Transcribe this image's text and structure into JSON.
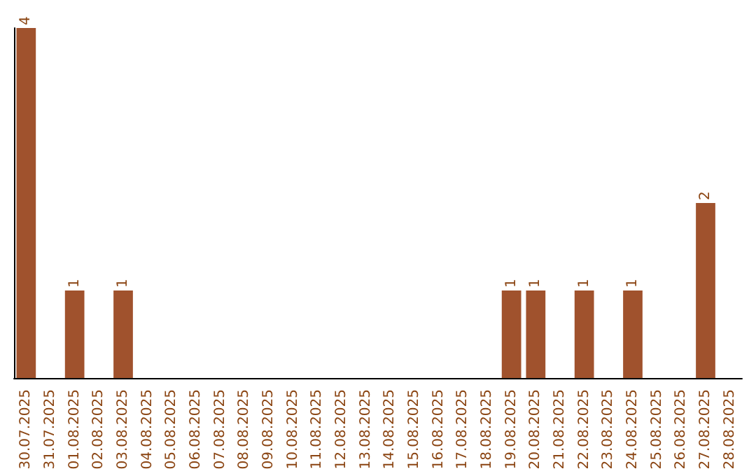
{
  "chart_data": {
    "type": "bar",
    "categories": [
      "30.07.2025",
      "31.07.2025",
      "01.08.2025",
      "02.08.2025",
      "03.08.2025",
      "04.08.2025",
      "05.08.2025",
      "06.08.2025",
      "07.08.2025",
      "08.08.2025",
      "09.08.2025",
      "10.08.2025",
      "11.08.2025",
      "12.08.2025",
      "13.08.2025",
      "14.08.2025",
      "15.08.2025",
      "16.08.2025",
      "17.08.2025",
      "18.08.2025",
      "19.08.2025",
      "20.08.2025",
      "21.08.2025",
      "22.08.2025",
      "23.08.2025",
      "24.08.2025",
      "25.08.2025",
      "26.08.2025",
      "27.08.2025",
      "28.08.2025"
    ],
    "values": [
      4,
      0,
      1,
      0,
      1,
      0,
      0,
      0,
      0,
      0,
      0,
      0,
      0,
      0,
      0,
      0,
      0,
      0,
      0,
      0,
      1,
      1,
      0,
      1,
      0,
      1,
      0,
      0,
      2,
      0
    ],
    "value_labels": [
      "4",
      null,
      "1",
      null,
      "1",
      null,
      null,
      null,
      null,
      null,
      null,
      null,
      null,
      null,
      null,
      null,
      null,
      null,
      null,
      null,
      "1",
      "1",
      null,
      "1",
      null,
      "1",
      null,
      null,
      "2",
      null
    ],
    "color": "#a0522d"
  }
}
